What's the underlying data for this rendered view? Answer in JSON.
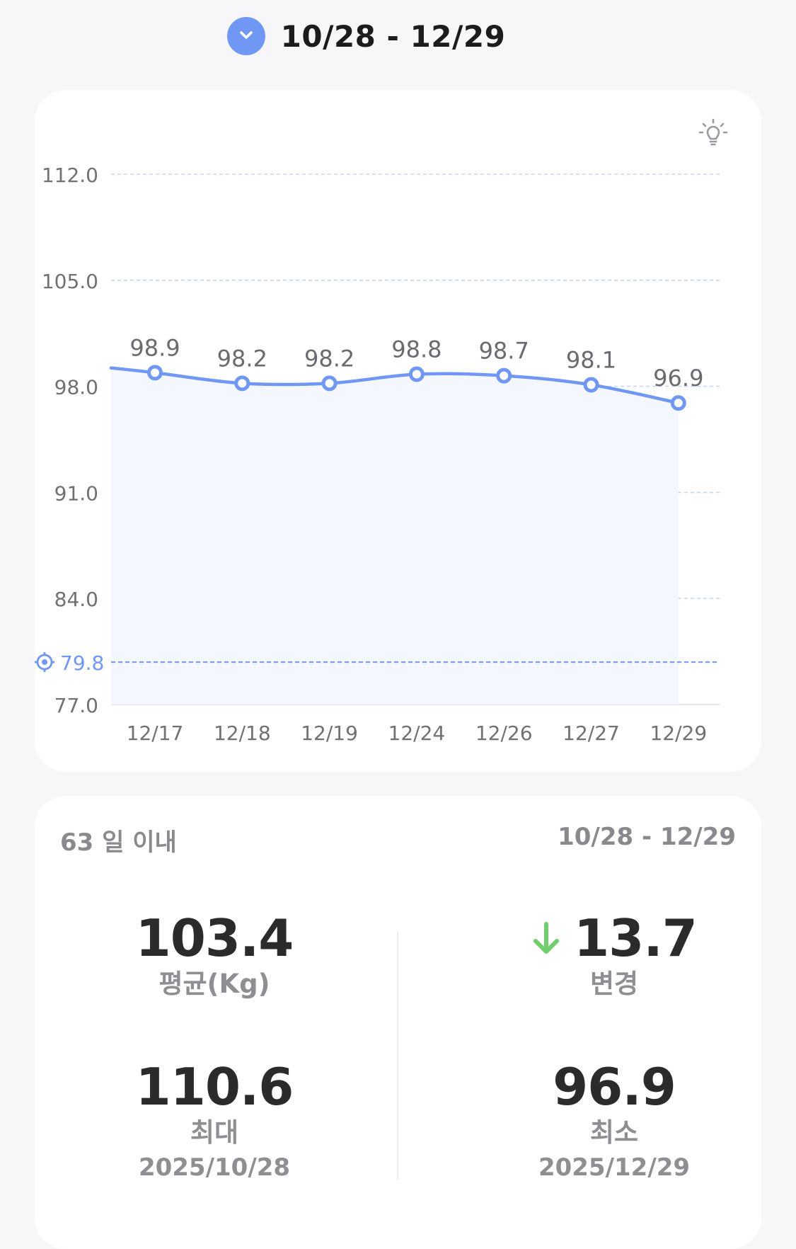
{
  "header": {
    "title": "10/28 - 12/29"
  },
  "colors": {
    "accent": "#6f97f3",
    "line": "#6f97f3",
    "area_fill": "#f5f7fe",
    "grid": "#c9d6f5",
    "axis_text": "#707075",
    "down_arrow": "#6fcf6b"
  },
  "icons": {
    "toggle": "chevron-down-icon",
    "tip": "lightbulb-icon",
    "goal": "target-icon",
    "change": "arrow-down-icon"
  },
  "chart_data": {
    "type": "line",
    "categories": [
      "12/17",
      "12/18",
      "12/19",
      "12/24",
      "12/26",
      "12/27",
      "12/29"
    ],
    "series": [
      {
        "values": [
          98.9,
          98.2,
          98.2,
          98.8,
          98.7,
          98.1,
          96.9
        ],
        "data_labels": [
          "98.9",
          "98.2",
          "98.2",
          "98.8",
          "98.7",
          "98.1",
          "96.9"
        ]
      }
    ],
    "ylim": [
      77.0,
      112.0
    ],
    "y_ticks": [
      112.0,
      105.0,
      98.0,
      91.0,
      84.0,
      77.0
    ],
    "y_tick_labels": [
      "112.0",
      "105.0",
      "98.0",
      "91.0",
      "84.0",
      "77.0"
    ],
    "goal_line": {
      "value": 79.8,
      "label": "79.8"
    },
    "grid": true,
    "area_fill": true,
    "line_continues_left": true
  },
  "stats": {
    "period_label": "63 일 이내",
    "range_label": "10/28 - 12/29",
    "average": {
      "value": "103.4",
      "label": "평균(Kg)"
    },
    "change": {
      "value": "13.7",
      "label": "변경",
      "direction": "down"
    },
    "max": {
      "value": "110.6",
      "label": "최대",
      "date": "2025/10/28"
    },
    "min": {
      "value": "96.9",
      "label": "최소",
      "date": "2025/12/29"
    }
  }
}
